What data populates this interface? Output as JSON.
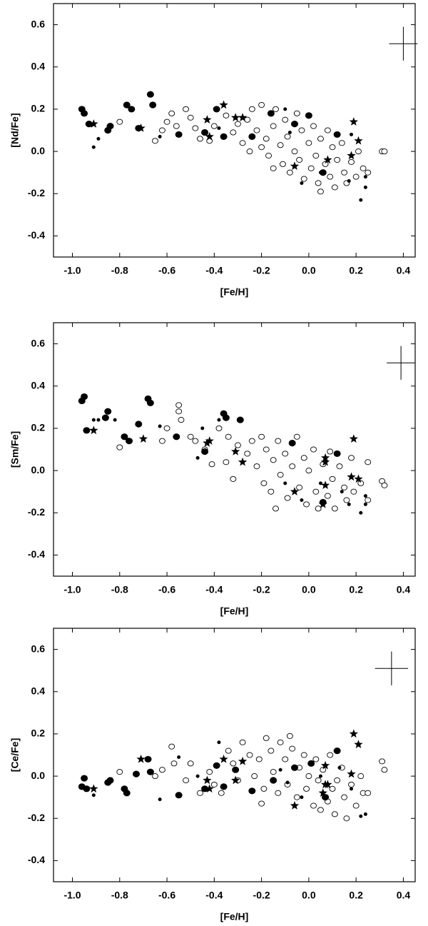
{
  "chart_data": [
    {
      "type": "scatter",
      "xlabel": "[Fe/H]",
      "ylabel": "[Nd/Fe]",
      "xlim": [
        -1.08,
        0.45
      ],
      "ylim": [
        -0.5,
        0.7
      ],
      "xticks": [
        {
          "value": -1.0,
          "label": "-1.0"
        },
        -0.8,
        -0.6,
        -0.4,
        -0.2,
        {
          "value": 0.0,
          "label": "0.0"
        },
        0.2,
        0.4
      ],
      "yticks": [
        -0.4,
        -0.2,
        {
          "value": 0.0,
          "label": "0.0"
        },
        0.2,
        0.4,
        0.6
      ],
      "error_bar": {
        "x": 0.4,
        "y": 0.51,
        "xerr": 0.06,
        "yerr": 0.08
      },
      "series": [
        {
          "marker": "open-circle",
          "color": "#000000",
          "x": [
            -0.8,
            -0.65,
            -0.62,
            -0.6,
            -0.58,
            -0.56,
            -0.52,
            -0.5,
            -0.48,
            -0.46,
            -0.42,
            -0.4,
            -0.35,
            -0.32,
            -0.3,
            -0.28,
            -0.26,
            -0.24,
            -0.22,
            -0.2,
            -0.2,
            -0.18,
            -0.17,
            -0.15,
            -0.14,
            -0.12,
            -0.11,
            -0.1,
            -0.09,
            -0.08,
            -0.06,
            -0.05,
            -0.04,
            -0.03,
            -0.02,
            0.0,
            0.01,
            0.02,
            0.03,
            0.04,
            0.05,
            0.07,
            0.08,
            0.09,
            0.1,
            0.11,
            0.12,
            0.14,
            0.15,
            0.16,
            0.18,
            0.2,
            0.21,
            0.23,
            0.25,
            0.31,
            0.32,
            -0.25,
            -0.15,
            0.05
          ],
          "y": [
            0.14,
            0.05,
            0.1,
            0.14,
            0.18,
            0.12,
            0.2,
            0.16,
            0.11,
            0.06,
            0.05,
            0.12,
            0.17,
            0.09,
            0.13,
            0.04,
            0.15,
            0.2,
            0.1,
            0.02,
            0.22,
            0.06,
            -0.02,
            0.12,
            0.2,
            0.03,
            -0.06,
            0.15,
            0.07,
            -0.1,
            0.0,
            0.18,
            -0.04,
            0.1,
            -0.13,
            0.04,
            -0.08,
            0.12,
            -0.02,
            -0.15,
            0.06,
            -0.06,
            0.1,
            -0.12,
            0.02,
            -0.17,
            -0.04,
            0.04,
            -0.1,
            -0.15,
            -0.05,
            -0.12,
            0.0,
            -0.08,
            -0.1,
            0.0,
            0.0,
            0.0,
            -0.08,
            -0.19
          ]
        },
        {
          "marker": "filled-circle",
          "color": "#000000",
          "x": [
            -0.96,
            -0.95,
            -0.93,
            -0.85,
            -0.84,
            -0.77,
            -0.75,
            -0.72,
            -0.67,
            -0.66,
            -0.55,
            -0.44,
            -0.39,
            -0.36,
            -0.24,
            -0.16,
            -0.06,
            0.0,
            0.06,
            0.12
          ],
          "y": [
            0.2,
            0.18,
            0.13,
            0.1,
            0.12,
            0.22,
            0.2,
            0.11,
            0.27,
            0.22,
            0.08,
            0.09,
            0.2,
            0.07,
            0.07,
            0.18,
            0.13,
            0.17,
            -0.1,
            0.08
          ]
        },
        {
          "marker": "dot",
          "color": "#000000",
          "x": [
            -0.91,
            -0.89,
            -0.63,
            -0.38,
            -0.1,
            -0.08,
            -0.03,
            0.05,
            0.18,
            0.22,
            0.24,
            0.24,
            0.17
          ],
          "y": [
            0.02,
            0.06,
            0.07,
            0.11,
            0.2,
            0.09,
            -0.15,
            -0.1,
            0.08,
            -0.23,
            -0.17,
            -0.12,
            -0.14
          ]
        },
        {
          "marker": "star",
          "color": "#000000",
          "x": [
            -0.91,
            -0.71,
            -0.43,
            -0.42,
            -0.36,
            -0.31,
            -0.28,
            -0.06,
            0.08,
            0.19,
            0.21,
            0.18
          ],
          "y": [
            0.13,
            0.11,
            0.15,
            0.07,
            0.22,
            0.16,
            0.16,
            -0.07,
            -0.04,
            0.14,
            0.05,
            -0.02
          ]
        }
      ]
    },
    {
      "type": "scatter",
      "xlabel": "[Fe/H]",
      "ylabel": "[Sm/Fe]",
      "xlim": [
        -1.08,
        0.45
      ],
      "ylim": [
        -0.5,
        0.7
      ],
      "xticks": [
        {
          "value": -1.0,
          "label": "-1.0"
        },
        -0.8,
        -0.6,
        -0.4,
        -0.2,
        {
          "value": 0.0,
          "label": "0.0"
        },
        0.2,
        0.4
      ],
      "yticks": [
        -0.4,
        -0.2,
        {
          "value": 0.0,
          "label": "0.0"
        },
        0.2,
        0.4,
        0.6
      ],
      "error_bar": {
        "x": 0.39,
        "y": 0.51,
        "xerr": 0.06,
        "yerr": 0.08
      },
      "series": [
        {
          "marker": "open-circle",
          "color": "#000000",
          "x": [
            -0.8,
            -0.62,
            -0.6,
            -0.55,
            -0.55,
            -0.54,
            -0.5,
            -0.48,
            -0.44,
            -0.41,
            -0.38,
            -0.34,
            -0.32,
            -0.3,
            -0.26,
            -0.24,
            -0.22,
            -0.2,
            -0.19,
            -0.18,
            -0.16,
            -0.15,
            -0.13,
            -0.12,
            -0.1,
            -0.09,
            -0.07,
            -0.05,
            -0.04,
            -0.02,
            -0.01,
            0.0,
            0.02,
            0.03,
            0.04,
            0.06,
            0.08,
            0.09,
            0.1,
            0.11,
            0.13,
            0.15,
            0.16,
            0.18,
            0.19,
            0.22,
            0.25,
            0.25,
            0.31,
            0.32,
            -0.35,
            -0.14
          ],
          "y": [
            0.11,
            0.14,
            0.2,
            0.31,
            0.28,
            0.24,
            0.16,
            0.14,
            0.1,
            0.03,
            0.2,
            0.16,
            -0.04,
            0.12,
            0.08,
            0.14,
            0.02,
            0.16,
            -0.06,
            0.1,
            -0.1,
            0.05,
            0.14,
            -0.02,
            0.08,
            -0.13,
            0.02,
            0.16,
            -0.08,
            0.06,
            -0.16,
            0.0,
            0.1,
            -0.1,
            -0.18,
            0.03,
            -0.12,
            0.09,
            -0.04,
            -0.18,
            0.02,
            -0.08,
            -0.14,
            0.06,
            -0.1,
            -0.06,
            0.04,
            -0.14,
            -0.05,
            -0.07,
            0.04,
            -0.18
          ]
        },
        {
          "marker": "filled-circle",
          "color": "#000000",
          "x": [
            -0.96,
            -0.95,
            -0.94,
            -0.85,
            -0.86,
            -0.78,
            -0.76,
            -0.72,
            -0.68,
            -0.67,
            -0.56,
            -0.44,
            -0.36,
            -0.35,
            -0.29,
            -0.07,
            0.06,
            0.12
          ],
          "y": [
            0.33,
            0.35,
            0.19,
            0.28,
            0.25,
            0.16,
            0.14,
            0.22,
            0.34,
            0.32,
            0.16,
            0.09,
            0.27,
            0.25,
            0.24,
            0.13,
            -0.15,
            0.08
          ]
        },
        {
          "marker": "dot",
          "color": "#000000",
          "x": [
            -0.91,
            -0.89,
            -0.82,
            -0.63,
            -0.47,
            -0.45,
            -0.38,
            -0.1,
            -0.03,
            0.05,
            0.14,
            0.22,
            0.24,
            0.24,
            0.17
          ],
          "y": [
            0.24,
            0.24,
            0.24,
            0.21,
            0.06,
            0.2,
            0.24,
            -0.06,
            -0.14,
            -0.06,
            -0.1,
            -0.2,
            -0.16,
            -0.12,
            -0.16
          ]
        },
        {
          "marker": "star",
          "color": "#000000",
          "x": [
            -0.91,
            -0.7,
            -0.43,
            -0.42,
            -0.31,
            -0.28,
            -0.06,
            0.07,
            0.07,
            0.06,
            0.19,
            0.18,
            0.21,
            0.07
          ],
          "y": [
            0.19,
            0.15,
            0.13,
            0.14,
            0.09,
            0.04,
            -0.1,
            0.06,
            0.04,
            -0.16,
            0.15,
            -0.03,
            -0.04,
            -0.07
          ]
        }
      ]
    },
    {
      "type": "scatter",
      "xlabel": "[Fe/H]",
      "ylabel": "[Ce/Fe]",
      "xlim": [
        -1.08,
        0.45
      ],
      "ylim": [
        -0.5,
        0.7
      ],
      "xticks": [
        {
          "value": -1.0,
          "label": "-1.0"
        },
        -0.8,
        -0.6,
        -0.4,
        -0.2,
        {
          "value": 0.0,
          "label": "0.0"
        },
        0.2,
        0.4
      ],
      "yticks": [
        -0.4,
        -0.2,
        {
          "value": 0.0,
          "label": "0.0"
        },
        0.2,
        0.4,
        0.6
      ],
      "error_bar": {
        "x": 0.35,
        "y": 0.51,
        "xerr": 0.07,
        "yerr": 0.08
      },
      "series": [
        {
          "marker": "open-circle",
          "color": "#000000",
          "x": [
            -0.8,
            -0.65,
            -0.62,
            -0.58,
            -0.57,
            -0.52,
            -0.5,
            -0.46,
            -0.42,
            -0.4,
            -0.37,
            -0.34,
            -0.32,
            -0.3,
            -0.28,
            -0.25,
            -0.23,
            -0.21,
            -0.19,
            -0.18,
            -0.16,
            -0.15,
            -0.13,
            -0.12,
            -0.1,
            -0.09,
            -0.07,
            -0.05,
            -0.04,
            -0.02,
            -0.01,
            0.0,
            0.02,
            0.03,
            0.04,
            0.05,
            0.06,
            0.08,
            0.09,
            0.1,
            0.11,
            0.12,
            0.14,
            0.15,
            0.16,
            0.18,
            0.2,
            0.22,
            0.23,
            0.25,
            0.31,
            0.32,
            -0.2,
            -0.08
          ],
          "y": [
            0.02,
            0.0,
            0.03,
            0.14,
            0.06,
            -0.02,
            0.06,
            -0.08,
            0.02,
            -0.04,
            -0.08,
            0.12,
            0.06,
            -0.02,
            0.16,
            0.1,
            0.0,
            0.08,
            -0.06,
            0.18,
            0.12,
            0.02,
            -0.08,
            0.16,
            0.08,
            -0.04,
            0.13,
            -0.1,
            0.04,
            0.1,
            -0.06,
            0.0,
            -0.14,
            0.08,
            -0.02,
            -0.16,
            0.03,
            -0.12,
            0.1,
            -0.06,
            -0.18,
            -0.02,
            0.04,
            -0.1,
            -0.2,
            -0.04,
            -0.14,
            0.0,
            -0.08,
            -0.08,
            0.07,
            0.03,
            -0.13,
            0.19
          ]
        },
        {
          "marker": "filled-circle",
          "color": "#000000",
          "x": [
            -0.96,
            -0.95,
            -0.94,
            -0.85,
            -0.84,
            -0.78,
            -0.77,
            -0.73,
            -0.68,
            -0.67,
            -0.55,
            -0.44,
            -0.39,
            -0.36,
            -0.31,
            -0.24,
            -0.15,
            -0.06,
            0.01,
            0.07,
            0.12
          ],
          "y": [
            -0.05,
            -0.01,
            -0.06,
            -0.03,
            -0.02,
            -0.06,
            -0.08,
            0.01,
            0.08,
            0.02,
            -0.09,
            -0.06,
            0.05,
            -0.05,
            0.03,
            -0.07,
            -0.02,
            0.04,
            0.06,
            -0.1,
            0.12
          ]
        },
        {
          "marker": "dot",
          "color": "#000000",
          "x": [
            -0.91,
            -0.63,
            -0.55,
            -0.47,
            -0.38,
            -0.12,
            -0.09,
            -0.03,
            0.05,
            0.13,
            0.22,
            0.24,
            0.18
          ],
          "y": [
            -0.09,
            -0.11,
            0.09,
            0.0,
            0.16,
            0.03,
            -0.03,
            -0.1,
            0.0,
            0.04,
            -0.19,
            -0.18,
            -0.06
          ]
        },
        {
          "marker": "star",
          "color": "#000000",
          "x": [
            -0.91,
            -0.71,
            -0.43,
            -0.42,
            -0.36,
            -0.31,
            -0.28,
            -0.06,
            0.07,
            0.07,
            0.06,
            0.19,
            0.21,
            0.18,
            0.08
          ],
          "y": [
            -0.06,
            0.08,
            -0.02,
            -0.06,
            0.08,
            -0.02,
            0.07,
            -0.14,
            0.05,
            -0.04,
            -0.08,
            0.2,
            0.15,
            0.01,
            -0.04
          ]
        }
      ]
    }
  ]
}
